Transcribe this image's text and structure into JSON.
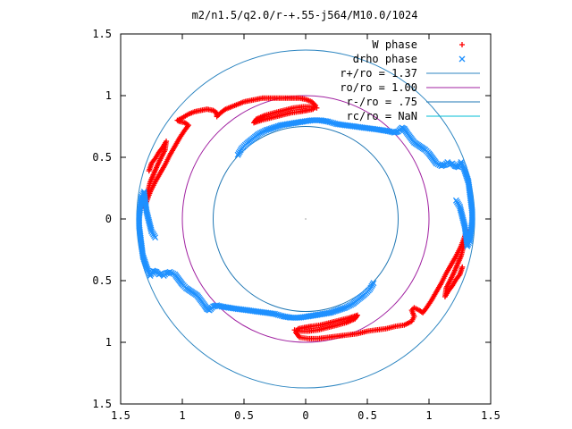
{
  "chart_data": {
    "type": "scatter",
    "title": "m2/n1.5/q2.0/r-+.55-j564/M10.0/1024",
    "xlim": [
      -1.5,
      1.5
    ],
    "ylim": [
      -1.5,
      1.5
    ],
    "x_ticks": [
      {
        "value": -1.5,
        "label": "1.5"
      },
      {
        "value": -1.0,
        "label": "1"
      },
      {
        "value": -0.5,
        "label": "0.5"
      },
      {
        "value": 0.0,
        "label": "0"
      },
      {
        "value": 0.5,
        "label": "0.5"
      },
      {
        "value": 1.0,
        "label": "1"
      },
      {
        "value": 1.5,
        "label": "1.5"
      }
    ],
    "y_ticks": [
      {
        "value": 1.5,
        "label": "1.5"
      },
      {
        "value": 1.0,
        "label": "1"
      },
      {
        "value": 0.5,
        "label": "0.5"
      },
      {
        "value": 0.0,
        "label": "0"
      },
      {
        "value": -0.5,
        "label": "0.5"
      },
      {
        "value": -1.0,
        "label": "1"
      },
      {
        "value": -1.5,
        "label": "1.5"
      }
    ],
    "grid": false,
    "legend_position": "top-right",
    "circles": [
      {
        "name": "r+/ro = 1.37",
        "radius": 1.37,
        "color": "#2e86c1"
      },
      {
        "name": "ro/ro = 1.00",
        "radius": 1.0,
        "color": "#a020a0"
      },
      {
        "name": "r-/ro = .75",
        "radius": 0.75,
        "color": "#1f77b4"
      },
      {
        "name": "rc/ro = NaN",
        "radius": null,
        "color": "#00bcd4"
      }
    ],
    "series": [
      {
        "name": "W phase",
        "marker": "+",
        "color": "#ff0000",
        "points": [
          [
            -1.27,
            0.39
          ],
          [
            -1.25,
            0.45
          ],
          [
            -1.22,
            0.49
          ],
          [
            -1.19,
            0.54
          ],
          [
            -1.16,
            0.58
          ],
          [
            -1.13,
            0.63
          ],
          [
            -1.14,
            0.56
          ],
          [
            -1.17,
            0.5
          ],
          [
            -1.2,
            0.44
          ],
          [
            -1.23,
            0.37
          ],
          [
            -1.26,
            0.3
          ],
          [
            -1.28,
            0.22
          ],
          [
            -1.3,
            0.15
          ],
          [
            -1.31,
            0.09
          ],
          [
            -1.29,
            0.14
          ],
          [
            -1.26,
            0.22
          ],
          [
            -1.22,
            0.3
          ],
          [
            -1.18,
            0.37
          ],
          [
            -1.14,
            0.44
          ],
          [
            -1.1,
            0.52
          ],
          [
            -1.06,
            0.59
          ],
          [
            -1.02,
            0.66
          ],
          [
            -0.98,
            0.72
          ],
          [
            -0.95,
            0.76
          ],
          [
            -0.98,
            0.78
          ],
          [
            -1.02,
            0.79
          ],
          [
            -1.04,
            0.8
          ],
          [
            -1.0,
            0.82
          ],
          [
            -0.95,
            0.85
          ],
          [
            -0.9,
            0.87
          ],
          [
            -0.85,
            0.88
          ],
          [
            -0.8,
            0.89
          ],
          [
            -0.75,
            0.88
          ],
          [
            -0.72,
            0.86
          ],
          [
            -0.72,
            0.83
          ],
          [
            -0.69,
            0.86
          ],
          [
            -0.65,
            0.89
          ],
          [
            -0.6,
            0.91
          ],
          [
            -0.55,
            0.93
          ],
          [
            -0.5,
            0.95
          ],
          [
            -0.45,
            0.96
          ],
          [
            -0.4,
            0.97
          ],
          [
            -0.35,
            0.98
          ],
          [
            -0.3,
            0.98
          ],
          [
            -0.25,
            0.98
          ],
          [
            -0.2,
            0.98
          ],
          [
            -0.15,
            0.98
          ],
          [
            -0.1,
            0.98
          ],
          [
            -0.05,
            0.98
          ],
          [
            0.0,
            0.97
          ],
          [
            0.05,
            0.95
          ],
          [
            0.08,
            0.92
          ],
          [
            0.06,
            0.89
          ],
          [
            0.01,
            0.88
          ],
          [
            -0.05,
            0.87
          ],
          [
            -0.12,
            0.86
          ],
          [
            -0.2,
            0.84
          ],
          [
            -0.28,
            0.82
          ],
          [
            -0.36,
            0.8
          ],
          [
            -0.42,
            0.78
          ],
          [
            -0.4,
            0.81
          ],
          [
            -0.33,
            0.84
          ],
          [
            -0.26,
            0.86
          ],
          [
            -0.18,
            0.88
          ],
          [
            -0.1,
            0.9
          ],
          [
            -0.02,
            0.91
          ],
          [
            0.05,
            0.91
          ],
          [
            0.09,
            0.9
          ],
          [
            1.27,
            -0.39
          ],
          [
            1.25,
            -0.45
          ],
          [
            1.22,
            -0.49
          ],
          [
            1.19,
            -0.54
          ],
          [
            1.16,
            -0.58
          ],
          [
            1.13,
            -0.63
          ],
          [
            1.14,
            -0.56
          ],
          [
            1.17,
            -0.5
          ],
          [
            1.2,
            -0.44
          ],
          [
            1.23,
            -0.37
          ],
          [
            1.26,
            -0.3
          ],
          [
            1.28,
            -0.22
          ],
          [
            1.3,
            -0.15
          ],
          [
            1.31,
            -0.09
          ],
          [
            1.29,
            -0.14
          ],
          [
            1.26,
            -0.22
          ],
          [
            1.22,
            -0.3
          ],
          [
            1.18,
            -0.37
          ],
          [
            1.14,
            -0.44
          ],
          [
            1.1,
            -0.52
          ],
          [
            1.06,
            -0.59
          ],
          [
            1.02,
            -0.66
          ],
          [
            0.98,
            -0.72
          ],
          [
            0.95,
            -0.76
          ],
          [
            0.92,
            -0.74
          ],
          [
            0.88,
            -0.72
          ],
          [
            0.86,
            -0.74
          ],
          [
            0.88,
            -0.79
          ],
          [
            0.86,
            -0.83
          ],
          [
            0.8,
            -0.86
          ],
          [
            0.73,
            -0.87
          ],
          [
            0.65,
            -0.89
          ],
          [
            0.57,
            -0.9
          ],
          [
            0.5,
            -0.91
          ],
          [
            0.42,
            -0.93
          ],
          [
            0.34,
            -0.94
          ],
          [
            0.26,
            -0.95
          ],
          [
            0.18,
            -0.96
          ],
          [
            0.1,
            -0.97
          ],
          [
            0.02,
            -0.97
          ],
          [
            -0.05,
            -0.96
          ],
          [
            -0.08,
            -0.92
          ],
          [
            -0.06,
            -0.89
          ],
          [
            -0.01,
            -0.88
          ],
          [
            0.05,
            -0.87
          ],
          [
            0.12,
            -0.86
          ],
          [
            0.2,
            -0.84
          ],
          [
            0.28,
            -0.82
          ],
          [
            0.36,
            -0.8
          ],
          [
            0.42,
            -0.78
          ],
          [
            0.4,
            -0.81
          ],
          [
            0.33,
            -0.84
          ],
          [
            0.26,
            -0.86
          ],
          [
            0.18,
            -0.88
          ],
          [
            0.1,
            -0.9
          ],
          [
            0.02,
            -0.91
          ],
          [
            -0.05,
            -0.91
          ],
          [
            -0.09,
            -0.9
          ]
        ]
      },
      {
        "name": "drho phase",
        "marker": "x",
        "color": "#1e90ff",
        "points": [
          [
            -0.55,
            0.52
          ],
          [
            -0.52,
            0.57
          ],
          [
            -0.48,
            0.61
          ],
          [
            -0.43,
            0.65
          ],
          [
            -0.38,
            0.69
          ],
          [
            -0.32,
            0.72
          ],
          [
            -0.26,
            0.74
          ],
          [
            -0.2,
            0.76
          ],
          [
            -0.14,
            0.77
          ],
          [
            -0.08,
            0.78
          ],
          [
            -0.02,
            0.79
          ],
          [
            0.05,
            0.8
          ],
          [
            0.12,
            0.8
          ],
          [
            0.18,
            0.79
          ],
          [
            0.25,
            0.77
          ],
          [
            0.32,
            0.76
          ],
          [
            0.4,
            0.75
          ],
          [
            0.47,
            0.74
          ],
          [
            0.55,
            0.73
          ],
          [
            0.62,
            0.72
          ],
          [
            0.68,
            0.71
          ],
          [
            0.72,
            0.7
          ],
          [
            0.75,
            0.71
          ],
          [
            0.78,
            0.74
          ],
          [
            0.8,
            0.73
          ],
          [
            0.82,
            0.7
          ],
          [
            0.85,
            0.66
          ],
          [
            0.88,
            0.62
          ],
          [
            0.91,
            0.6
          ],
          [
            0.94,
            0.58
          ],
          [
            0.97,
            0.56
          ],
          [
            1.0,
            0.53
          ],
          [
            1.03,
            0.49
          ],
          [
            1.06,
            0.45
          ],
          [
            1.1,
            0.43
          ],
          [
            1.13,
            0.44
          ],
          [
            1.15,
            0.46
          ],
          [
            1.17,
            0.44
          ],
          [
            1.19,
            0.45
          ],
          [
            1.21,
            0.43
          ],
          [
            1.24,
            0.42
          ],
          [
            1.26,
            0.46
          ],
          [
            1.28,
            0.42
          ],
          [
            1.3,
            0.36
          ],
          [
            1.32,
            0.3
          ],
          [
            1.33,
            0.22
          ],
          [
            1.34,
            0.14
          ],
          [
            1.35,
            0.06
          ],
          [
            1.35,
            -0.02
          ],
          [
            1.34,
            -0.1
          ],
          [
            1.33,
            -0.18
          ],
          [
            1.31,
            -0.22
          ],
          [
            1.3,
            -0.14
          ],
          [
            1.29,
            -0.06
          ],
          [
            1.27,
            0.02
          ],
          [
            1.25,
            0.1
          ],
          [
            1.22,
            0.15
          ],
          [
            0.55,
            -0.52
          ],
          [
            0.52,
            -0.57
          ],
          [
            0.48,
            -0.61
          ],
          [
            0.43,
            -0.65
          ],
          [
            0.38,
            -0.69
          ],
          [
            0.32,
            -0.72
          ],
          [
            0.26,
            -0.74
          ],
          [
            0.2,
            -0.76
          ],
          [
            0.14,
            -0.77
          ],
          [
            0.08,
            -0.78
          ],
          [
            0.02,
            -0.79
          ],
          [
            -0.05,
            -0.8
          ],
          [
            -0.12,
            -0.8
          ],
          [
            -0.18,
            -0.79
          ],
          [
            -0.25,
            -0.77
          ],
          [
            -0.32,
            -0.76
          ],
          [
            -0.4,
            -0.75
          ],
          [
            -0.47,
            -0.74
          ],
          [
            -0.55,
            -0.73
          ],
          [
            -0.62,
            -0.72
          ],
          [
            -0.68,
            -0.71
          ],
          [
            -0.72,
            -0.7
          ],
          [
            -0.75,
            -0.71
          ],
          [
            -0.78,
            -0.74
          ],
          [
            -0.8,
            -0.73
          ],
          [
            -0.82,
            -0.7
          ],
          [
            -0.85,
            -0.66
          ],
          [
            -0.88,
            -0.62
          ],
          [
            -0.91,
            -0.6
          ],
          [
            -0.94,
            -0.58
          ],
          [
            -0.97,
            -0.56
          ],
          [
            -1.0,
            -0.53
          ],
          [
            -1.03,
            -0.49
          ],
          [
            -1.06,
            -0.45
          ],
          [
            -1.1,
            -0.43
          ],
          [
            -1.13,
            -0.44
          ],
          [
            -1.15,
            -0.46
          ],
          [
            -1.17,
            -0.44
          ],
          [
            -1.19,
            -0.45
          ],
          [
            -1.21,
            -0.43
          ],
          [
            -1.24,
            -0.42
          ],
          [
            -1.26,
            -0.46
          ],
          [
            -1.28,
            -0.42
          ],
          [
            -1.3,
            -0.36
          ],
          [
            -1.32,
            -0.3
          ],
          [
            -1.33,
            -0.22
          ],
          [
            -1.34,
            -0.14
          ],
          [
            -1.35,
            -0.06
          ],
          [
            -1.35,
            0.02
          ],
          [
            -1.34,
            0.1
          ],
          [
            -1.33,
            0.18
          ],
          [
            -1.31,
            0.22
          ],
          [
            -1.3,
            0.14
          ],
          [
            -1.29,
            0.06
          ],
          [
            -1.27,
            -0.02
          ],
          [
            -1.25,
            -0.1
          ],
          [
            -1.22,
            -0.15
          ]
        ]
      }
    ]
  }
}
